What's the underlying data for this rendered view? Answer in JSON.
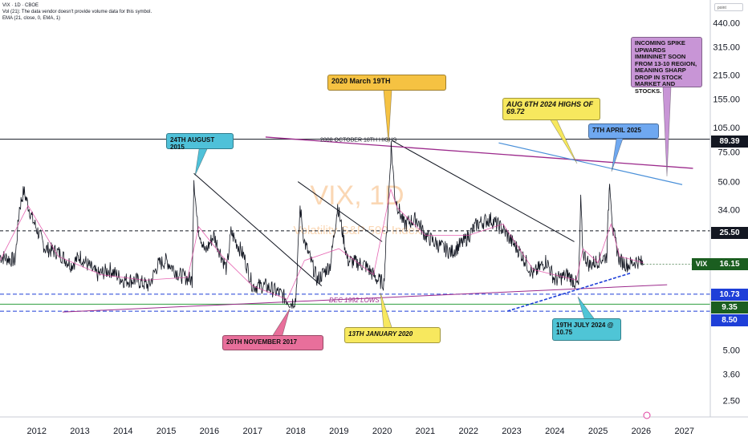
{
  "header": {
    "line1": "VIX · 1D · CBOE",
    "line2": "Vol (21): The data vendor doesn't provide volume data for this symbol.",
    "line3": "EMA (21, close, 0, EMA, 1)",
    "tool_label": "point"
  },
  "watermark": {
    "symbol": "VIX, 1D",
    "subtitle": "Volatility S&P 500 Index"
  },
  "price_tags": {
    "high": "89.39",
    "resistance": "25.50",
    "current_symbol": "VIX",
    "current": "16.15",
    "support1": "10.73",
    "support2": "9.35",
    "support3": "8.50"
  },
  "line_labels": {
    "high_2008": "2008 OCTOBER 18TH HIGHS",
    "low_1992": "DEC 1992 LOWS"
  },
  "annotations": {
    "aug2015": "24TH AUGUST 2015",
    "mar2020": "2020 March  19TH",
    "aug2024": "AUG 6TH 2024 HIGHS OF 69.72",
    "apr2025": "7TH APRIL 2025",
    "incoming": "INCOMING SPIKE UPWARDS IMMININET SOON FROM 13-10 REGION, MEANING SHARP DROP IN STOCK MARKET AND STOCKS.",
    "nov2017": "20TH NOVEMBER 2017",
    "jan2020": "13TH JANUARY 2020",
    "jul2024": "19TH JULY 2024 @ 10.75"
  },
  "colors": {
    "candle": "#131722",
    "ema": "#e040a0",
    "support_dash": "#1e3fd8",
    "resistance_dash": "#131722",
    "trendline": "#131722",
    "purple_line": "#9c2a8c",
    "blue_trend": "#4a90d9",
    "green_line": "#2e9e3e",
    "tag_dark": "#131722",
    "tag_blue": "#1e3fd8",
    "tag_green": "#1b5e20",
    "callout_blue": "#4fc1d9",
    "callout_yellow": "#f5c242",
    "callout_lightyellow": "#f7e85e",
    "callout_lightblue": "#6fa8f0",
    "callout_purple": "#c895d6",
    "callout_pink": "#e86f9b",
    "callout_cyan": "#4fc5d6"
  },
  "chart_data": {
    "type": "line",
    "title": "VIX · 1D · CBOE",
    "xlabel": "",
    "ylabel": "",
    "scale": "log",
    "ylim": [
      2.0,
      600.0
    ],
    "xlim": [
      2011.15,
      2027.6
    ],
    "x_ticks": [
      "2012",
      "2013",
      "2014",
      "2015",
      "2016",
      "2017",
      "2018",
      "2019",
      "2020",
      "2021",
      "2022",
      "2023",
      "2024",
      "2025",
      "2026",
      "2027"
    ],
    "y_ticks": [
      "440.00",
      "315.00",
      "215.00",
      "155.00",
      "105.00",
      "75.00",
      "50.00",
      "34.00",
      "25.50",
      "16.15",
      "10.73",
      "9.35",
      "8.50",
      "5.00",
      "3.60",
      "2.50"
    ],
    "series": [
      {
        "name": "VIX daily close (approx.)",
        "x": [
          2011.15,
          2011.5,
          2011.6,
          2011.7,
          2011.9,
          2012.2,
          2012.5,
          2012.8,
          2013.0,
          2013.4,
          2013.7,
          2014.0,
          2014.3,
          2014.6,
          2014.8,
          2015.0,
          2015.3,
          2015.6,
          2015.64,
          2015.72,
          2015.9,
          2016.1,
          2016.4,
          2016.5,
          2016.8,
          2017.0,
          2017.3,
          2017.6,
          2017.89,
          2018.0,
          2018.1,
          2018.2,
          2018.5,
          2018.8,
          2018.97,
          2019.2,
          2019.6,
          2019.9,
          2020.04,
          2020.15,
          2020.21,
          2020.3,
          2020.5,
          2020.8,
          2021.0,
          2021.3,
          2021.6,
          2021.9,
          2022.2,
          2022.5,
          2022.8,
          2023.0,
          2023.2,
          2023.5,
          2023.8,
          2024.0,
          2024.3,
          2024.55,
          2024.6,
          2024.65,
          2024.8,
          2025.0,
          2025.2,
          2025.27,
          2025.35,
          2025.5,
          2025.7,
          2025.9,
          2026.05
        ],
        "values": [
          18,
          17,
          35,
          44,
          30,
          20,
          19,
          16,
          18,
          14,
          15,
          13,
          13,
          12,
          16,
          17,
          14,
          13,
          53,
          28,
          19,
          24,
          15,
          25,
          18,
          12,
          12,
          11,
          9.5,
          10,
          35,
          22,
          13,
          16,
          36,
          17,
          16,
          13,
          12.5,
          40,
          82,
          40,
          28,
          30,
          24,
          21,
          19,
          22,
          28,
          30,
          26,
          22,
          19,
          14,
          17,
          13,
          14,
          12,
          38,
          19,
          16,
          17,
          18,
          52,
          25,
          17,
          16,
          17,
          16.2
        ]
      },
      {
        "name": "EMA (21, close)",
        "x": [
          2011.15,
          2011.8,
          2012.5,
          2013.5,
          2014.5,
          2015.5,
          2015.75,
          2016.3,
          2017.0,
          2017.8,
          2018.2,
          2019.0,
          2019.8,
          2020.2,
          2020.35,
          2021.0,
          2022.0,
          2022.8,
          2023.5,
          2024.5,
          2024.65,
          2025.0,
          2025.3,
          2025.5,
          2026.05
        ],
        "values": [
          17,
          36,
          18,
          14,
          13,
          13.5,
          27,
          18,
          12,
          10,
          17,
          20,
          14,
          45,
          35,
          24,
          24,
          28,
          15,
          13,
          20,
          16.5,
          28,
          18,
          16.5
        ]
      }
    ],
    "reference_lines": [
      {
        "label": "2008 OCTOBER 18TH HIGHS",
        "value": 89.39
      },
      {
        "label": "25.50",
        "value": 25.5
      },
      {
        "label": "10.73",
        "value": 10.73
      },
      {
        "label": "9.35",
        "value": 9.35
      },
      {
        "label": "8.50",
        "value": 8.5
      }
    ],
    "trendlines": [
      {
        "name": "2015 decline",
        "from": [
          2015.64,
          56
        ],
        "to": [
          2018.6,
          12
        ]
      },
      {
        "name": "2018 decline",
        "from": [
          2018.05,
          50
        ],
        "to": [
          2020.0,
          22
        ]
      },
      {
        "name": "2020 decline",
        "from": [
          2020.22,
          88
        ],
        "to": [
          2024.45,
          22
        ]
      },
      {
        "name": "purple top line",
        "from": [
          2017.3,
          92
        ],
        "to": [
          2027.2,
          60
        ]
      },
      {
        "name": "blue top line",
        "from": [
          2022.7,
          85
        ],
        "to": [
          2026.95,
          48
        ]
      },
      {
        "name": "DEC 1992 LOWS",
        "from": [
          2012.6,
          8.4
        ],
        "to": [
          2026.6,
          12.2
        ]
      },
      {
        "name": "blue support",
        "from": [
          2022.9,
          8.5
        ],
        "to": [
          2025.75,
          14.3
        ]
      }
    ]
  }
}
